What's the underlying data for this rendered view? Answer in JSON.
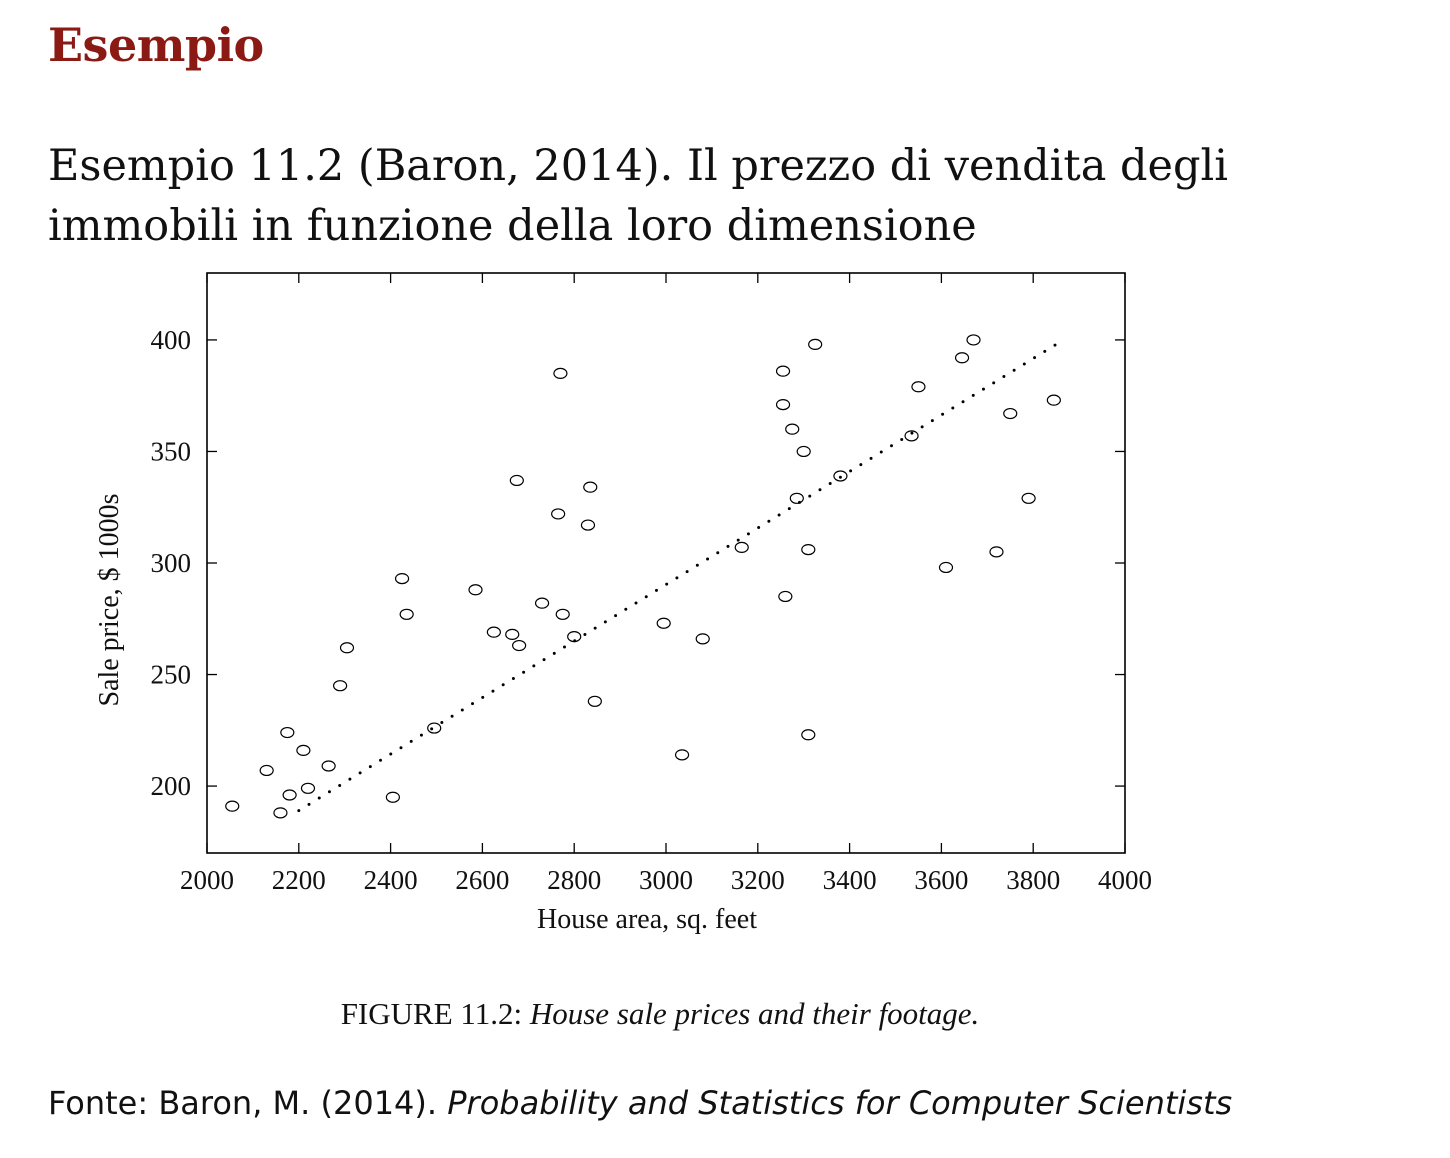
{
  "slide": {
    "heading": "Esempio",
    "subtitle_line1": "Esempio 11.2 (Baron, 2014). Il prezzo di vendita degli",
    "subtitle_line2": "immobili in funzione della loro dimensione",
    "caption_label": "FIGURE 11.2:",
    "caption_text": "House sale prices and their footage.",
    "source_prefix": "Fonte: Baron, M. (2014).",
    "source_title": "Probability and Statistics for Computer Scientists",
    "heading_color": "#8b1a14"
  },
  "chart_data": {
    "type": "scatter",
    "xlabel": "House area, sq. feet",
    "ylabel": "Sale price, $ 1000s",
    "xlim": [
      2000,
      4000
    ],
    "ylim": [
      170,
      430
    ],
    "xticks": [
      2000,
      2200,
      2400,
      2600,
      2800,
      3000,
      3200,
      3400,
      3600,
      3800,
      4000
    ],
    "yticks": [
      200,
      250,
      300,
      350,
      400
    ],
    "grid": false,
    "marker": "open-circle",
    "series": [
      {
        "points": [
          [
            2055,
            191
          ],
          [
            2130,
            207
          ],
          [
            2160,
            188
          ],
          [
            2175,
            224
          ],
          [
            2180,
            196
          ],
          [
            2210,
            216
          ],
          [
            2220,
            199
          ],
          [
            2265,
            209
          ],
          [
            2290,
            245
          ],
          [
            2305,
            262
          ],
          [
            2405,
            195
          ],
          [
            2425,
            293
          ],
          [
            2435,
            277
          ],
          [
            2495,
            226
          ],
          [
            2585,
            288
          ],
          [
            2625,
            269
          ],
          [
            2665,
            268
          ],
          [
            2675,
            337
          ],
          [
            2680,
            263
          ],
          [
            2730,
            282
          ],
          [
            2765,
            322
          ],
          [
            2770,
            385
          ],
          [
            2775,
            277
          ],
          [
            2800,
            267
          ],
          [
            2830,
            317
          ],
          [
            2835,
            334
          ],
          [
            2845,
            238
          ],
          [
            2995,
            273
          ],
          [
            3035,
            214
          ],
          [
            3080,
            266
          ],
          [
            3165,
            307
          ],
          [
            3255,
            386
          ],
          [
            3255,
            371
          ],
          [
            3260,
            285
          ],
          [
            3275,
            360
          ],
          [
            3285,
            329
          ],
          [
            3300,
            350
          ],
          [
            3310,
            306
          ],
          [
            3310,
            223
          ],
          [
            3325,
            398
          ],
          [
            3380,
            339
          ],
          [
            3535,
            357
          ],
          [
            3550,
            379
          ],
          [
            3610,
            298
          ],
          [
            3645,
            392
          ],
          [
            3670,
            400
          ],
          [
            3720,
            305
          ],
          [
            3750,
            367
          ],
          [
            3790,
            329
          ],
          [
            3845,
            373
          ]
        ]
      }
    ],
    "fit_line": {
      "style": "dotted",
      "from": [
        2200,
        189
      ],
      "to": [
        3850,
        398
      ]
    }
  }
}
